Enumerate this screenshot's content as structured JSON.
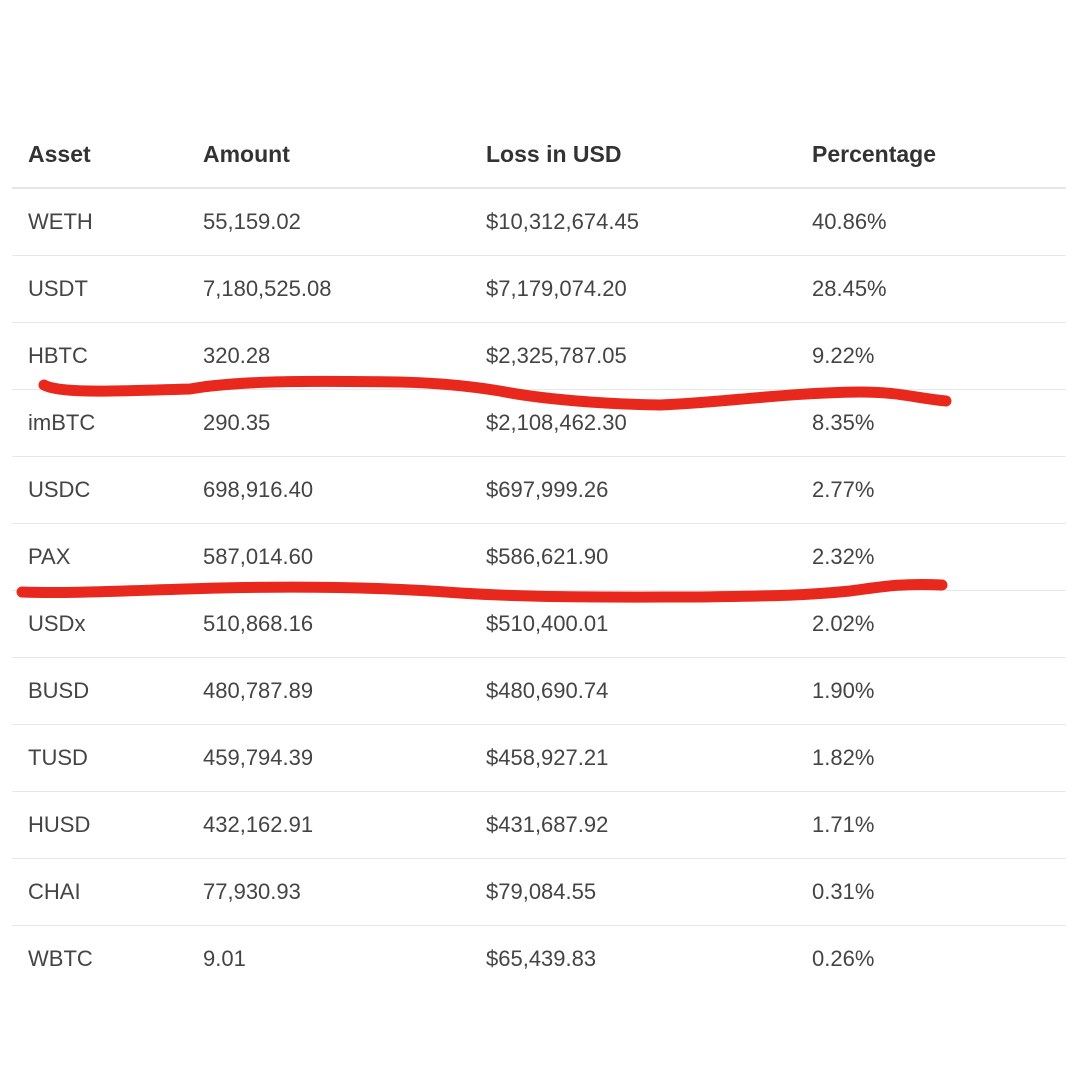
{
  "table": {
    "headers": [
      "Asset",
      "Amount",
      "Loss in USD",
      "Percentage"
    ],
    "rows": [
      [
        "WETH",
        "55,159.02",
        "$10,312,674.45",
        "40.86%"
      ],
      [
        "USDT",
        "7,180,525.08",
        "$7,179,074.20",
        "28.45%"
      ],
      [
        "HBTC",
        "320.28",
        "$2,325,787.05",
        "9.22%"
      ],
      [
        "imBTC",
        "290.35",
        "$2,108,462.30",
        "8.35%"
      ],
      [
        "USDC",
        "698,916.40",
        "$697,999.26",
        "2.77%"
      ],
      [
        "PAX",
        "587,014.60",
        "$586,621.90",
        "2.32%"
      ],
      [
        "USDx",
        "510,868.16",
        "$510,400.01",
        "2.02%"
      ],
      [
        "BUSD",
        "480,787.89",
        "$480,690.74",
        "1.90%"
      ],
      [
        "TUSD",
        "459,794.39",
        "$458,927.21",
        "1.82%"
      ],
      [
        "HUSD",
        "432,162.91",
        "$431,687.92",
        "1.71%"
      ],
      [
        "CHAI",
        "77,930.93",
        "$79,084.55",
        "0.31%"
      ],
      [
        "WBTC",
        "9.01",
        "$65,439.83",
        "0.26%"
      ]
    ]
  },
  "annotations": {
    "marker_color": "#e8281c"
  }
}
